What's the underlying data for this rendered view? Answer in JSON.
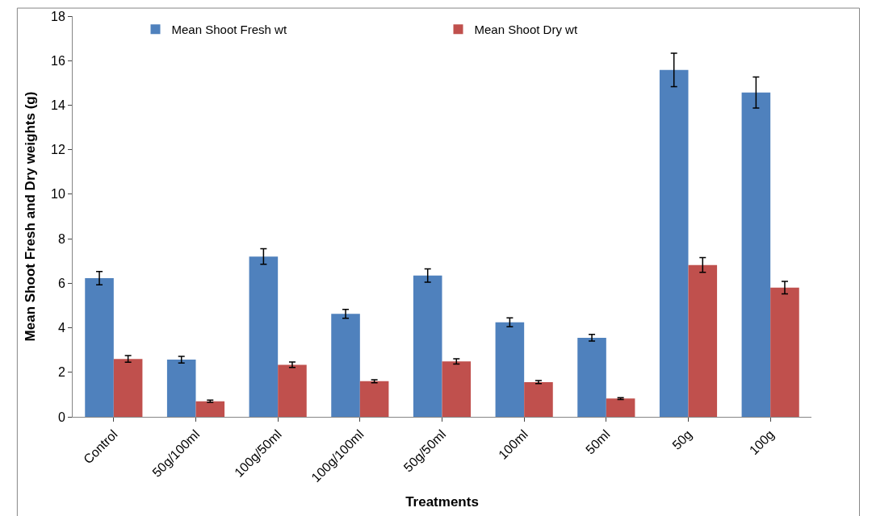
{
  "chart_data": {
    "type": "bar",
    "xlabel": "Treatments",
    "ylabel": "Mean Shoot Fresh and Dry weights (g)",
    "categories": [
      "Control",
      "50g/100ml",
      "100g/50ml",
      "100g/100ml",
      "50g/50ml",
      "100ml",
      "50ml",
      "50g",
      "100g"
    ],
    "series": [
      {
        "name": "Mean Shoot Fresh wt",
        "color": "#4f81bd",
        "values": [
          6.23,
          2.57,
          7.2,
          4.63,
          6.35,
          4.25,
          3.55,
          15.58,
          14.57
        ],
        "errors": [
          0.3,
          0.15,
          0.35,
          0.2,
          0.3,
          0.2,
          0.15,
          0.75,
          0.7
        ]
      },
      {
        "name": "Mean Shoot Dry wt",
        "color": "#c0504d",
        "values": [
          2.6,
          0.7,
          2.34,
          1.6,
          2.49,
          1.56,
          0.82,
          6.82,
          5.8
        ],
        "errors": [
          0.15,
          0.05,
          0.12,
          0.07,
          0.12,
          0.07,
          0.04,
          0.33,
          0.28
        ]
      }
    ],
    "ylim": [
      0,
      18
    ],
    "yticks": [
      0,
      2,
      4,
      6,
      8,
      10,
      12,
      14,
      16,
      18
    ],
    "grid": false,
    "legend": "top"
  }
}
